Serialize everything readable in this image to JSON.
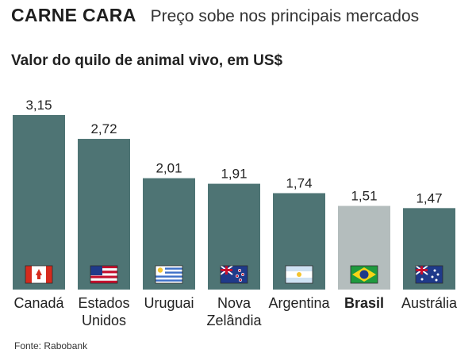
{
  "header": {
    "title": "CARNE CARA",
    "subtitle": "Preço sobe nos principais mercados"
  },
  "chart_title": "Valor do quilo de animal vivo, em US$",
  "source": "Fonte: Rabobank",
  "colors": {
    "bar": "#4e7474",
    "highlight_bar": "#b4bdbd"
  },
  "chart_data": {
    "type": "bar",
    "title": "Valor do quilo de animal vivo, em US$",
    "xlabel": "",
    "ylabel": "",
    "ylim": [
      0,
      3.15
    ],
    "grid": false,
    "categories": [
      "Canadá",
      "Estados\nUnidos",
      "Uruguai",
      "Nova\nZelândia",
      "Argentina",
      "Brasil",
      "Austrália"
    ],
    "values": [
      3.15,
      2.72,
      2.01,
      1.91,
      1.74,
      1.51,
      1.47
    ],
    "value_labels": [
      "3,15",
      "2,72",
      "2,01",
      "1,91",
      "1,74",
      "1,51",
      "1,47"
    ],
    "highlight": "Brasil",
    "flags": [
      "canada-flag",
      "usa-flag",
      "uruguay-flag",
      "new-zealand-flag",
      "argentina-flag",
      "brazil-flag",
      "australia-flag"
    ]
  }
}
